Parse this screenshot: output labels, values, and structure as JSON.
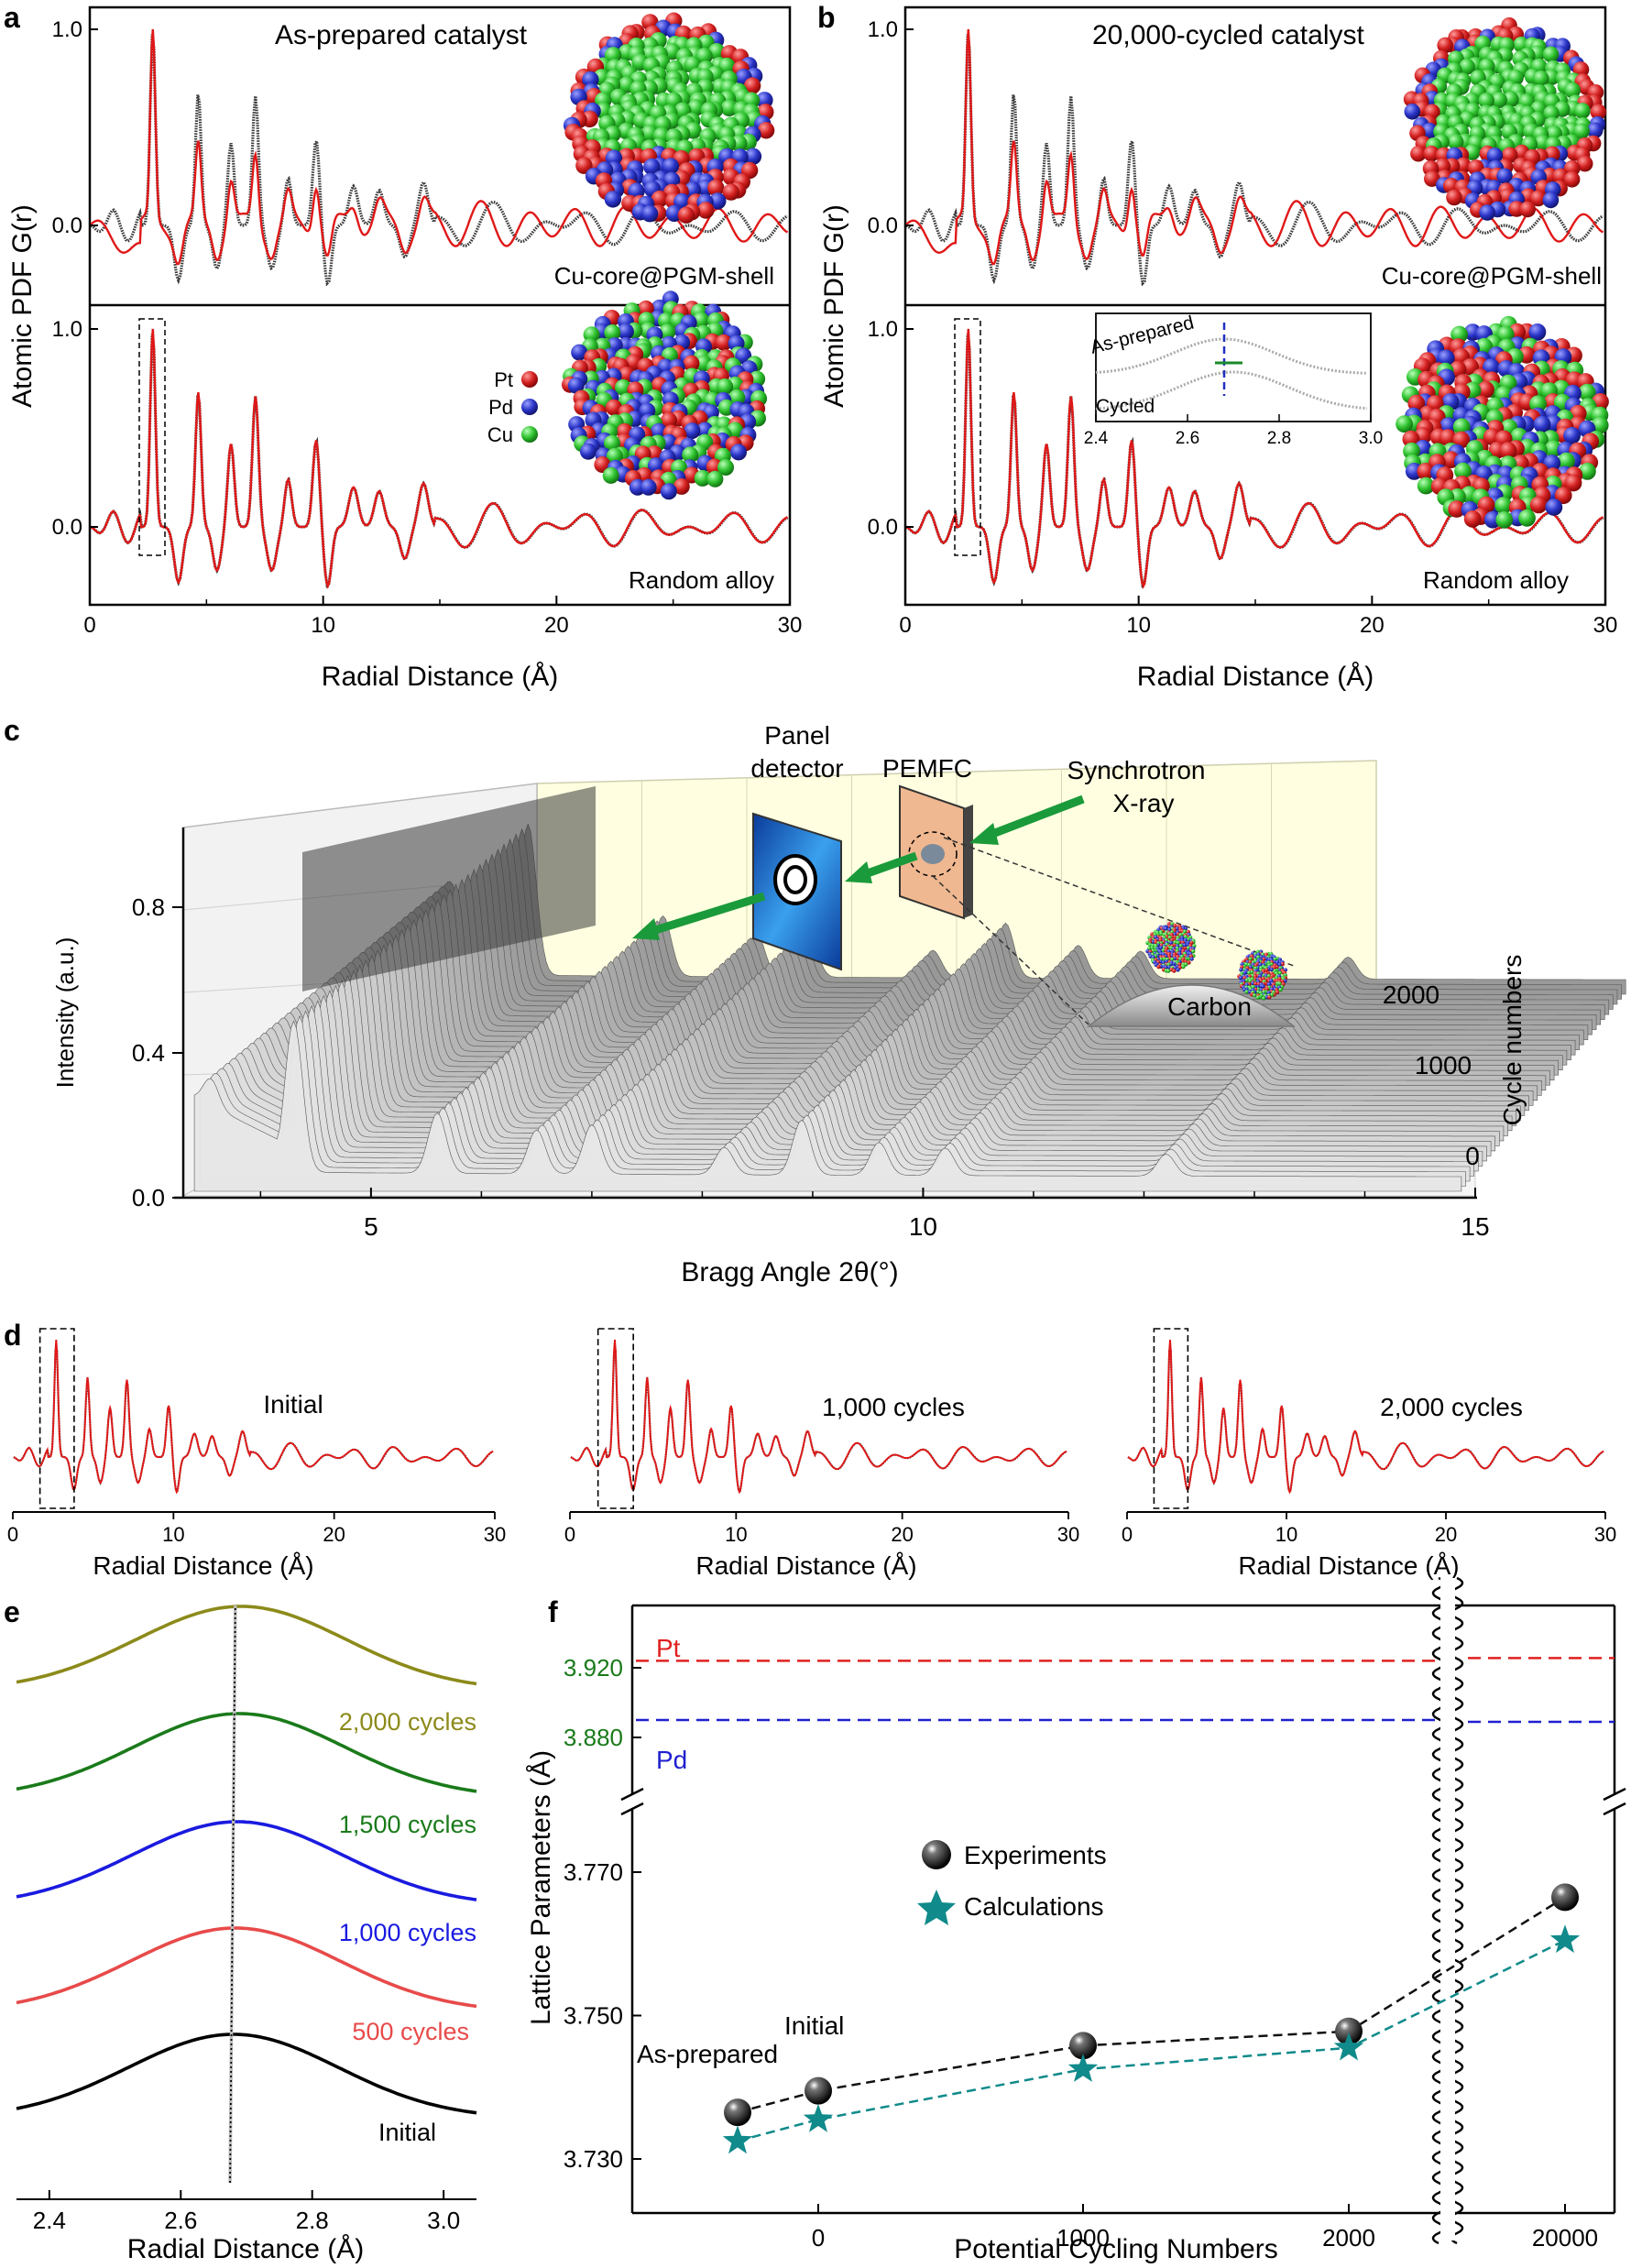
{
  "panels": {
    "a": {
      "letter": "a",
      "title": "As-prepared catalyst",
      "ylabel": "Atomic PDF G(r)",
      "xlabel": "Radial Distance (Å)",
      "top_label": "Cu-core@PGM-shell",
      "bottom_label": "Random alloy",
      "legend": [
        {
          "label": "Pt",
          "color": "#d42020"
        },
        {
          "label": "Pd",
          "color": "#2a35c8"
        },
        {
          "label": "Cu",
          "color": "#2ec22e"
        }
      ]
    },
    "b": {
      "letter": "b",
      "title": "20,000-cycled catalyst",
      "ylabel": "Atomic PDF G(r)",
      "xlabel": "Radial Distance (Å)",
      "top_label": "Cu-core@PGM-shell",
      "bottom_label": "Random alloy",
      "inset": {
        "labels": [
          "As-prepared",
          "Cycled"
        ],
        "xticks": [
          "2.4",
          "2.6",
          "2.8",
          "3.0"
        ]
      }
    },
    "c": {
      "letter": "c",
      "ylabel": "Intensity (a.u.)",
      "xlabel": "Bragg Angle 2θ(°)",
      "zlabel": "Cycle numbers",
      "zticks": [
        "2000",
        "1000",
        "0"
      ],
      "labels": {
        "detector_line1": "Panel",
        "detector_line2": "detector",
        "pemfc": "PEMFC",
        "xray_line1": "Synchrotron",
        "xray_line2": "X-ray",
        "carbon": "Carbon"
      }
    },
    "d": {
      "letter": "d",
      "xlabel": "Radial Distance (Å)",
      "labels": [
        "Initial",
        "1,000 cycles",
        "2,000 cycles"
      ]
    },
    "e": {
      "letter": "e",
      "xlabel": "Radial Distance (Å)"
    },
    "f": {
      "letter": "f",
      "xlabel": "Potential Cycling Numbers",
      "ylabel": "Lattice Parameters (Å)",
      "pt_label": "Pt",
      "pd_label": "Pd",
      "legend_experiments": "Experiments",
      "legend_calculations": "Calculations",
      "annot_asprepared": "As-prepared",
      "annot_initial": "Initial",
      "ref_color_pt": "#e02020",
      "ref_color_pd": "#2020d0",
      "ytick_color_upper": "#1a7a1a"
    }
  },
  "chart_data": [
    {
      "type": "line",
      "panel": "a-top",
      "xlim": [
        0,
        30
      ],
      "xticks": [
        0,
        10,
        20,
        30
      ],
      "yticks": [
        0.0,
        1.0
      ],
      "ylim": [
        -0.35,
        1.08
      ]
    },
    {
      "type": "line",
      "panel": "a-bottom",
      "xlim": [
        0,
        30
      ],
      "xticks": [
        0,
        10,
        20,
        30
      ],
      "yticks": [
        0.0,
        1.0
      ],
      "ylim": [
        -0.35,
        1.08
      ]
    },
    {
      "type": "line",
      "panel": "b-top",
      "xlim": [
        0,
        30
      ],
      "xticks": [
        0,
        10,
        20,
        30
      ],
      "yticks": [
        0.0,
        1.0
      ],
      "ylim": [
        -0.35,
        1.08
      ]
    },
    {
      "type": "line",
      "panel": "b-bottom",
      "xlim": [
        0,
        30
      ],
      "xticks": [
        0,
        10,
        20,
        30
      ],
      "yticks": [
        0.0,
        1.0
      ],
      "ylim": [
        -0.35,
        1.08
      ]
    },
    {
      "type": "area",
      "panel": "c",
      "xlim": [
        3.3,
        15
      ],
      "xticks": [
        5,
        10,
        15
      ],
      "yticks": [
        0.0,
        0.4,
        0.8
      ],
      "ylim": [
        0,
        1.0
      ],
      "peaks_2theta": [
        3.6,
        4.3,
        5.6,
        6.5,
        7.0,
        8.2,
        8.9,
        9.6,
        10.2,
        12.2
      ]
    },
    {
      "type": "line",
      "panel": "d",
      "xlim": [
        0,
        30
      ],
      "xticks": [
        0,
        10,
        20,
        30
      ]
    },
    {
      "type": "line",
      "panel": "e",
      "xlim": [
        2.35,
        3.05
      ],
      "xticks": [
        2.4,
        2.6,
        2.8,
        3.0
      ],
      "peak_position": 2.68,
      "series": [
        {
          "name": "Initial",
          "color": "#000000"
        },
        {
          "name": "500 cycles",
          "color": "#e84a4a"
        },
        {
          "name": "1,000 cycles",
          "color": "#1a1ae0"
        },
        {
          "name": "1,500 cycles",
          "color": "#1a7a1a"
        },
        {
          "name": "2,000 cycles",
          "color": "#8c8a1a"
        }
      ]
    },
    {
      "type": "scatter",
      "panel": "f",
      "categories": [
        "As-prepared",
        "0",
        "1000",
        "2000",
        "20000"
      ],
      "xticks": [
        "0",
        "1000",
        "2000",
        "20000"
      ],
      "yticks_lower": [
        3.73,
        3.75,
        3.77
      ],
      "yticks_upper": [
        3.88,
        3.92
      ],
      "ylim_lower": [
        3.726,
        3.776
      ],
      "ylim_upper": [
        3.866,
        3.936
      ],
      "reference_lines": [
        {
          "name": "Pt",
          "value": 3.924
        },
        {
          "name": "Pd",
          "value": 3.89
        }
      ],
      "series": [
        {
          "name": "Experiments",
          "values": [
            3.7365,
            3.7395,
            3.7458,
            3.7478,
            3.7665
          ]
        },
        {
          "name": "Calculations",
          "values": [
            3.7325,
            3.7355,
            3.7425,
            3.7455,
            3.7605
          ]
        }
      ]
    }
  ]
}
